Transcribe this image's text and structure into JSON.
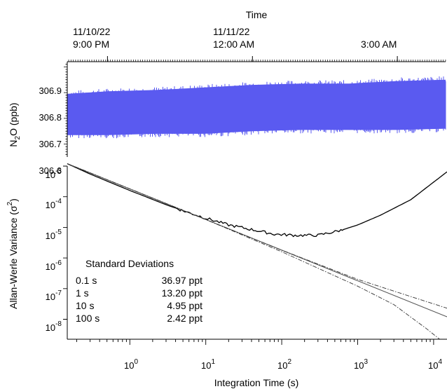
{
  "chart_data": [
    {
      "type": "line",
      "title": "",
      "xlabel": "Time",
      "ylabel_main": "N",
      "ylabel_sub": "2",
      "ylabel_rest": "O (ppb)",
      "time_ticks": [
        {
          "date": "11/10/22",
          "time": "9:00 PM"
        },
        {
          "date": "11/11/22",
          "time": "12:00 AM"
        },
        {
          "date": "",
          "time": "3:00 AM"
        }
      ],
      "ylim": [
        306.55,
        306.92
      ],
      "y_ticks": [
        "306.6",
        "306.7",
        "306.8",
        "306.9"
      ],
      "series": [
        {
          "color": "#5a5af0",
          "x": [
            "20:10",
            "21:00",
            "22:00",
            "23:00",
            "00:00",
            "01:00",
            "02:00",
            "03:00",
            "04:00"
          ],
          "center": [
            306.715,
            306.72,
            306.725,
            306.73,
            306.74,
            306.745,
            306.745,
            306.75,
            306.755
          ],
          "half_range": [
            0.08,
            0.085,
            0.085,
            0.09,
            0.09,
            0.09,
            0.09,
            0.095,
            0.095
          ]
        }
      ]
    },
    {
      "type": "line",
      "xlabel": "Integration Time (s)",
      "ylabel_main": "Allan-Werle Variance (σ",
      "ylabel_sup": "2",
      "ylabel_end": ")",
      "x_scale": "log",
      "y_scale": "log",
      "xlim": [
        0.15,
        15000
      ],
      "ylim": [
        1e-09,
        0.0012
      ],
      "x_tick_exponents": [
        "0",
        "1",
        "2",
        "3",
        "4"
      ],
      "y_tick_exponents": [
        "-3",
        "-4",
        "-5",
        "-6",
        "-7",
        "-8"
      ],
      "series": [
        {
          "style": "solid-black",
          "x": [
            0.15,
            0.3,
            1,
            3,
            5,
            10,
            20,
            40,
            80,
            150,
            300,
            600,
            1000,
            2000,
            5000,
            10000,
            15000
          ],
          "y": [
            0.0012,
            0.00055,
            0.00016,
            5.5e-05,
            3.5e-05,
            2e-05,
            1.2e-05,
            8.5e-06,
            6e-06,
            5.5e-06,
            5.5e-06,
            8e-06,
            1.2e-05,
            2.5e-05,
            8e-05,
            0.0003,
            0.00065
          ]
        },
        {
          "style": "solid-gray",
          "x": [
            0.15,
            15000
          ],
          "y": [
            0.0012,
            1.2e-08
          ]
        },
        {
          "style": "dashdot-upper",
          "x": [
            0.15,
            1,
            10,
            100,
            1000,
            5000,
            15000
          ],
          "y": [
            0.0012,
            0.00018,
            1.8e-05,
            1.8e-06,
            2e-07,
            5.5e-08,
            2.3e-08
          ]
        },
        {
          "style": "dashdot-lower",
          "x": [
            0.15,
            1,
            10,
            100,
            1000,
            3000,
            8000,
            12000
          ],
          "y": [
            0.0012,
            0.00018,
            1.8e-05,
            1.6e-06,
            1.2e-07,
            3e-08,
            5e-09,
            1e-09
          ]
        }
      ],
      "table": {
        "title": "Standard Deviations",
        "rows": [
          {
            "tau": "0.1 s",
            "value": "36.97 ppt"
          },
          {
            "tau": "1 s",
            "value": "13.20 ppt"
          },
          {
            "tau": "10 s",
            "value": "4.95 ppt"
          },
          {
            "tau": "100 s",
            "value": "2.42 ppt"
          }
        ]
      }
    }
  ]
}
